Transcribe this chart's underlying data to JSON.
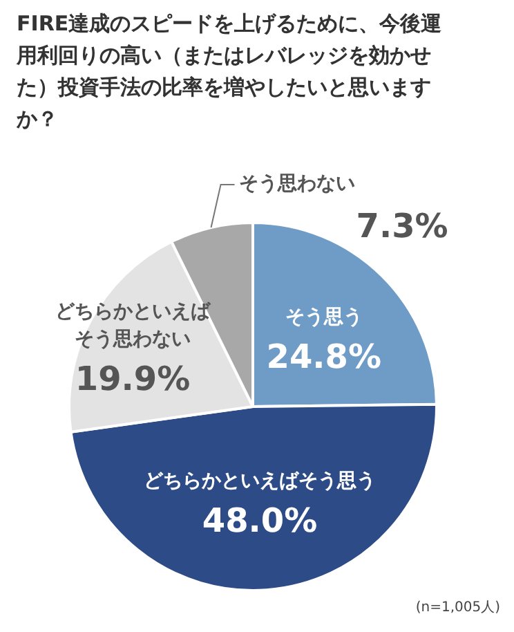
{
  "chart_data": {
    "type": "pie",
    "title": "FIRE達成のスピードを上げるために、今後運用利回りの高い（またはレバレッジを効かせた）投資手法の比率を増やしたいと思いますか？",
    "categories": [
      "そう思う",
      "どちらかといえばそう思う",
      "どちらかといえばそう思わない",
      "そう思わない"
    ],
    "values": [
      24.8,
      48.0,
      19.9,
      7.3
    ],
    "value_labels": [
      "24.8%",
      "48.0%",
      "19.9%",
      "7.3%"
    ],
    "colors": [
      "#6f9cc6",
      "#2d4c87",
      "#e3e3e3",
      "#a8a8a8"
    ],
    "annotations": [
      "(n=1,005人)"
    ]
  }
}
